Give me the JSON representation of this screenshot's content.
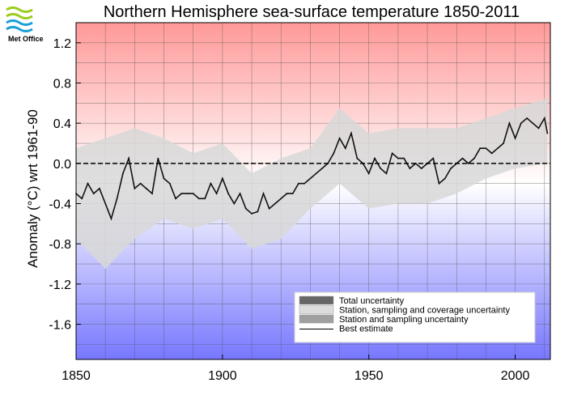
{
  "logo": {
    "text": "Met Office",
    "colors": [
      "#9ccc1c",
      "#1aa0d8"
    ]
  },
  "chart_data": {
    "type": "line",
    "title": "Northern Hemisphere sea-surface temperature 1850-2011",
    "xlabel": "",
    "ylabel": "Anomaly (°C) wrt 1961-90",
    "xlim": [
      1850,
      2012
    ],
    "ylim": [
      -1.95,
      1.4
    ],
    "x_ticks": [
      1850,
      1900,
      1950,
      2000
    ],
    "y_ticks": [
      1.2,
      0.8,
      0.4,
      0.0,
      -0.4,
      -0.8,
      -1.2,
      -1.6
    ],
    "y_tick_labels": [
      "1.2",
      "0.8",
      "0.4",
      "0.0",
      "-0.4",
      "-0.8",
      "-1.2",
      "-1.6"
    ],
    "grid": true,
    "background": {
      "top_color": "#ff9999",
      "middle_color": "#ffffff",
      "bottom_color": "#7777ff"
    },
    "zero_line": true,
    "legend_position": "bottom-right",
    "legend": [
      {
        "label": "Total uncertainty",
        "color": "#666666",
        "kind": "box"
      },
      {
        "label": "Station, sampling and coverage uncertainty",
        "color": "#dddddd",
        "kind": "box"
      },
      {
        "label": "Station and sampling uncertainty",
        "color": "#a0a0a0",
        "kind": "box"
      },
      {
        "label": "Best estimate",
        "color": "#000000",
        "kind": "line"
      }
    ],
    "series": [
      {
        "name": "Best estimate",
        "x": [
          1850,
          1852,
          1854,
          1856,
          1858,
          1860,
          1862,
          1864,
          1866,
          1868,
          1870,
          1872,
          1874,
          1876,
          1878,
          1880,
          1882,
          1884,
          1886,
          1888,
          1890,
          1892,
          1894,
          1896,
          1898,
          1900,
          1902,
          1904,
          1906,
          1908,
          1910,
          1912,
          1914,
          1916,
          1918,
          1920,
          1922,
          1924,
          1926,
          1928,
          1930,
          1932,
          1934,
          1936,
          1938,
          1940,
          1942,
          1944,
          1946,
          1948,
          1950,
          1952,
          1954,
          1956,
          1958,
          1960,
          1962,
          1964,
          1966,
          1968,
          1970,
          1972,
          1974,
          1976,
          1978,
          1980,
          1982,
          1984,
          1986,
          1988,
          1990,
          1992,
          1994,
          1996,
          1998,
          2000,
          2002,
          2004,
          2006,
          2008,
          2010,
          2011
        ],
        "y": [
          -0.3,
          -0.35,
          -0.2,
          -0.3,
          -0.25,
          -0.4,
          -0.55,
          -0.35,
          -0.1,
          0.05,
          -0.25,
          -0.2,
          -0.25,
          -0.3,
          0.05,
          -0.15,
          -0.2,
          -0.35,
          -0.3,
          -0.3,
          -0.3,
          -0.35,
          -0.35,
          -0.2,
          -0.3,
          -0.15,
          -0.3,
          -0.4,
          -0.3,
          -0.45,
          -0.5,
          -0.48,
          -0.3,
          -0.45,
          -0.4,
          -0.35,
          -0.3,
          -0.3,
          -0.2,
          -0.2,
          -0.15,
          -0.1,
          -0.05,
          0.0,
          0.1,
          0.25,
          0.15,
          0.3,
          0.05,
          0.0,
          -0.1,
          0.05,
          -0.05,
          -0.1,
          0.1,
          0.05,
          0.05,
          -0.05,
          0.0,
          -0.05,
          0.0,
          0.05,
          -0.2,
          -0.15,
          -0.05,
          0.0,
          0.05,
          0.0,
          0.05,
          0.15,
          0.15,
          0.1,
          0.15,
          0.2,
          0.4,
          0.25,
          0.4,
          0.45,
          0.4,
          0.35,
          0.45,
          0.3
        ]
      },
      {
        "name": "Total uncertainty",
        "x": [
          1850,
          1860,
          1870,
          1880,
          1890,
          1900,
          1910,
          1920,
          1930,
          1940,
          1950,
          1960,
          1970,
          1980,
          1990,
          2000,
          2011
        ],
        "y_lower": [
          -0.75,
          -1.05,
          -0.75,
          -0.55,
          -0.65,
          -0.55,
          -0.85,
          -0.75,
          -0.45,
          -0.2,
          -0.45,
          -0.4,
          -0.4,
          -0.3,
          -0.15,
          -0.05,
          0.0
        ],
        "y_upper": [
          0.15,
          0.25,
          0.35,
          0.25,
          0.1,
          0.2,
          -0.1,
          0.05,
          0.15,
          0.55,
          0.3,
          0.35,
          0.35,
          0.35,
          0.45,
          0.55,
          0.65
        ]
      }
    ]
  }
}
